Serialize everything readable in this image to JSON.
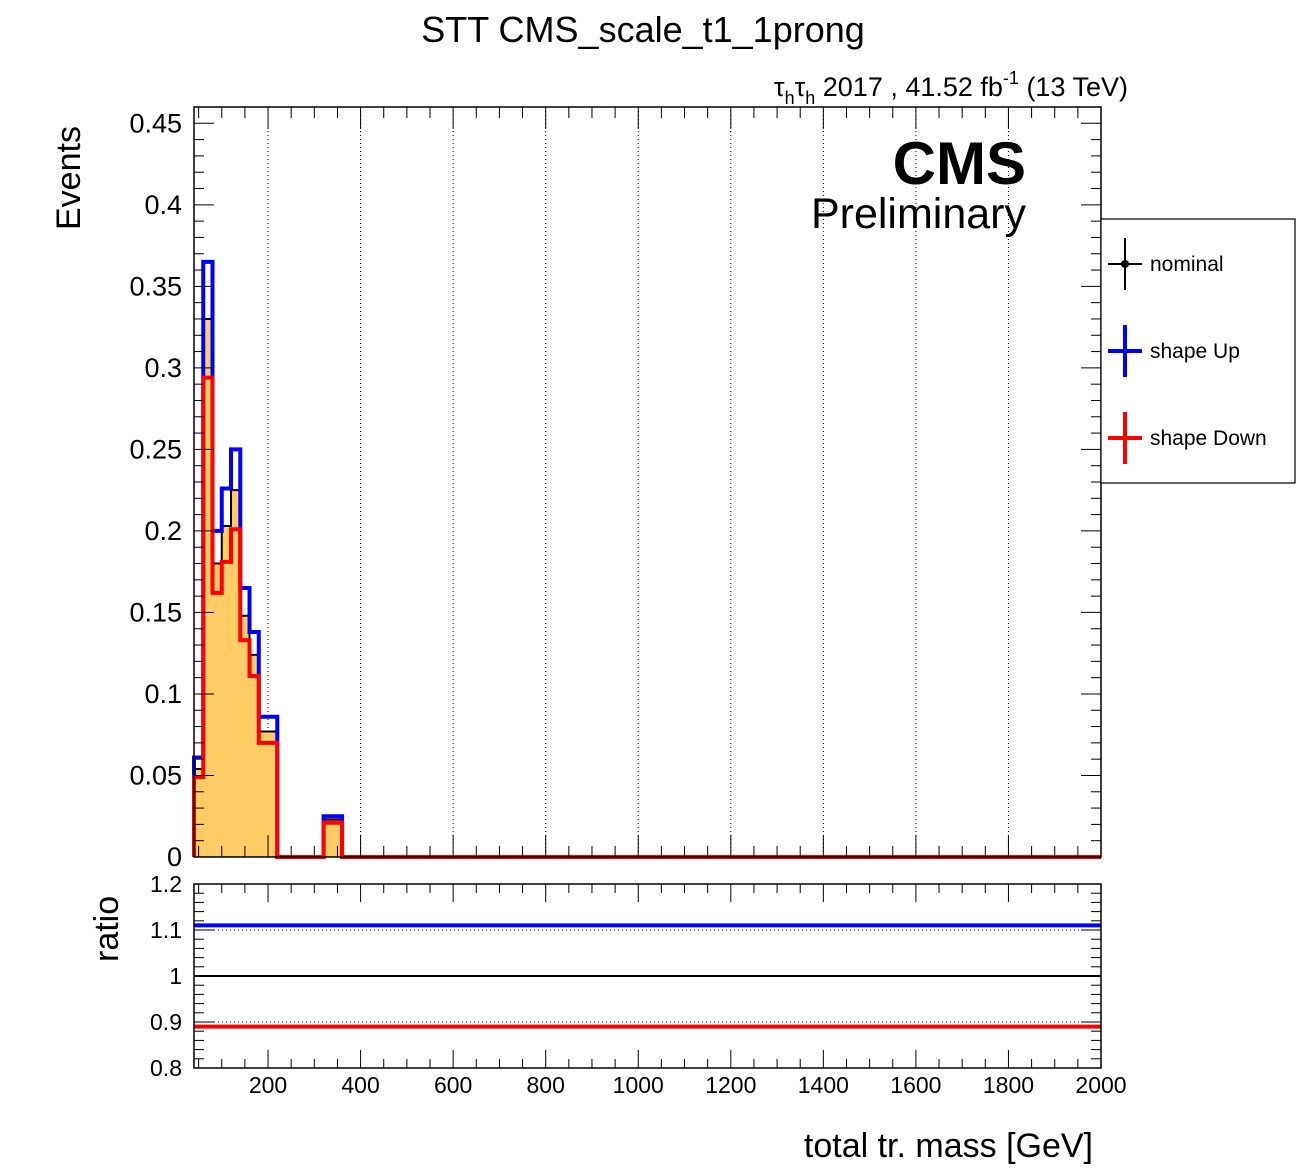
{
  "title": "STT CMS_scale_t1_1prong",
  "lumi": {
    "channel_tau": "τ",
    "channel_sub": "h",
    "text": " 2017 , 41.52 fb",
    "exp": "-1",
    "energy": " (13 TeV)"
  },
  "cms_label": "CMS",
  "prelim_label": "Preliminary",
  "legend": {
    "nominal": "nominal",
    "up": "shape Up",
    "down": "shape Down"
  },
  "colors": {
    "fill": "#FFCC66",
    "nominal": "#000000",
    "up": "#0000FF",
    "down": "#FF0000"
  },
  "chart_data": [
    {
      "type": "line",
      "subtype": "step-histogram",
      "ylabel": "Events",
      "ylim": [
        0,
        0.46
      ],
      "yticks": [
        {
          "v": 0,
          "label": "0"
        },
        {
          "v": 0.05,
          "label": "0.05"
        },
        {
          "v": 0.1,
          "label": "0.1"
        },
        {
          "v": 0.15,
          "label": "0.15"
        },
        {
          "v": 0.2,
          "label": "0.2"
        },
        {
          "v": 0.25,
          "label": "0.25"
        },
        {
          "v": 0.3,
          "label": "0.3"
        },
        {
          "v": 0.35,
          "label": "0.35"
        },
        {
          "v": 0.4,
          "label": "0.4"
        },
        {
          "v": 0.45,
          "label": "0.45"
        }
      ],
      "xlim": [
        40,
        2000
      ],
      "grid": "vertical dotted",
      "legend_position": "right, outside",
      "bin_edges": [
        40,
        60,
        80,
        100,
        120,
        140,
        160,
        180,
        200,
        220,
        240,
        260,
        280,
        300,
        320,
        340,
        360,
        380,
        400,
        500,
        2000
      ],
      "series": [
        {
          "name": "nominal",
          "style": "filled",
          "values": [
            0.054,
            0.33,
            0.18,
            0.203,
            0.225,
            0.148,
            0.124,
            0.077,
            0.077,
            0,
            0,
            0,
            0,
            0,
            0.023,
            0.023,
            0,
            0,
            0,
            0
          ]
        },
        {
          "name": "shape Up",
          "values": [
            0.061,
            0.365,
            0.2,
            0.226,
            0.25,
            0.165,
            0.138,
            0.086,
            0.086,
            0,
            0,
            0,
            0,
            0,
            0.025,
            0.025,
            0,
            0,
            0,
            0
          ]
        },
        {
          "name": "shape Down",
          "values": [
            0.049,
            0.294,
            0.162,
            0.181,
            0.201,
            0.133,
            0.111,
            0.07,
            0.07,
            0,
            0,
            0,
            0,
            0,
            0.021,
            0.021,
            0,
            0,
            0,
            0
          ]
        }
      ]
    },
    {
      "type": "line",
      "ylabel": "ratio",
      "xlabel": "total tr. mass [GeV]",
      "ylim": [
        0.8,
        1.2
      ],
      "yticks": [
        {
          "v": 0.8,
          "label": "0.8"
        },
        {
          "v": 0.9,
          "label": "0.9"
        },
        {
          "v": 1,
          "label": "1"
        },
        {
          "v": 1.1,
          "label": "1.1"
        },
        {
          "v": 1.2,
          "label": "1.2"
        }
      ],
      "xlim": [
        40,
        2000
      ],
      "xticks": [
        {
          "v": 200,
          "label": "200"
        },
        {
          "v": 400,
          "label": "400"
        },
        {
          "v": 600,
          "label": "600"
        },
        {
          "v": 800,
          "label": "800"
        },
        {
          "v": 1000,
          "label": "1000"
        },
        {
          "v": 1200,
          "label": "1200"
        },
        {
          "v": 1400,
          "label": "1400"
        },
        {
          "v": 1600,
          "label": "1600"
        },
        {
          "v": 1800,
          "label": "1800"
        },
        {
          "v": 2000,
          "label": "2000"
        }
      ],
      "series": [
        {
          "name": "nominal",
          "values": [
            1.0
          ]
        },
        {
          "name": "shape Up",
          "values": [
            1.11
          ]
        },
        {
          "name": "shape Down",
          "values": [
            0.89
          ]
        }
      ]
    }
  ]
}
